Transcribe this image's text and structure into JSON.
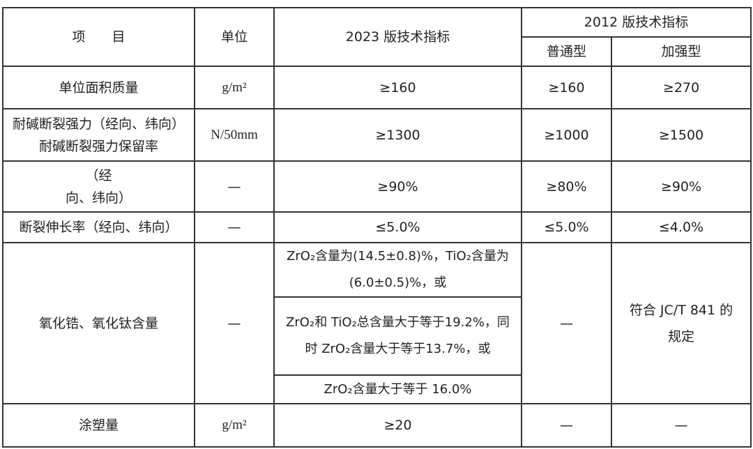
{
  "header": {
    "item": "项　　目",
    "unit": "单位",
    "v2023": "2023 版技术指标",
    "v2012": "2012 版技术指标",
    "normal": "普通型",
    "reinforced": "加强型"
  },
  "rows": [
    {
      "item": "单位面积质量",
      "unit": "g/m²",
      "v2023": "≥160",
      "normal": "≥160",
      "reinforced": "≥270"
    },
    {
      "item": "耐碱断裂强力（经向、纬向） 耐碱断裂强力保留率",
      "unit": "N/50mm",
      "v2023": "≥1300",
      "normal": "≥1000",
      "reinforced": "≥1500"
    },
    {
      "item": "（经\n向、纬向）",
      "unit": "—",
      "v2023": "≥90%",
      "normal": "≥80%",
      "reinforced": "≥90%"
    },
    {
      "item": "断裂伸长率（经向、纬向）",
      "unit": "—",
      "v2023": "≤5.0%",
      "normal": "≤5.0%",
      "reinforced": "≤4.0%"
    },
    {
      "item": "氧化锆、氧化钛含量",
      "unit": "—",
      "v2023": [
        "ZrO₂含量为(14.5±0.8)%，TiO₂含量为(6.0±0.5)%，或",
        "ZrO₂和 TiO₂总含量大于等于19.2%，同时 ZrO₂含量大于等于13.7%，或",
        "ZrO₂含量大于等于 16.0%"
      ],
      "normal": "—",
      "reinforced": "符合 JC/T 841 的规定"
    },
    {
      "item": "涂塑量",
      "unit": "g/m²",
      "v2023": "≥20",
      "normal": "—",
      "reinforced": "—"
    }
  ]
}
